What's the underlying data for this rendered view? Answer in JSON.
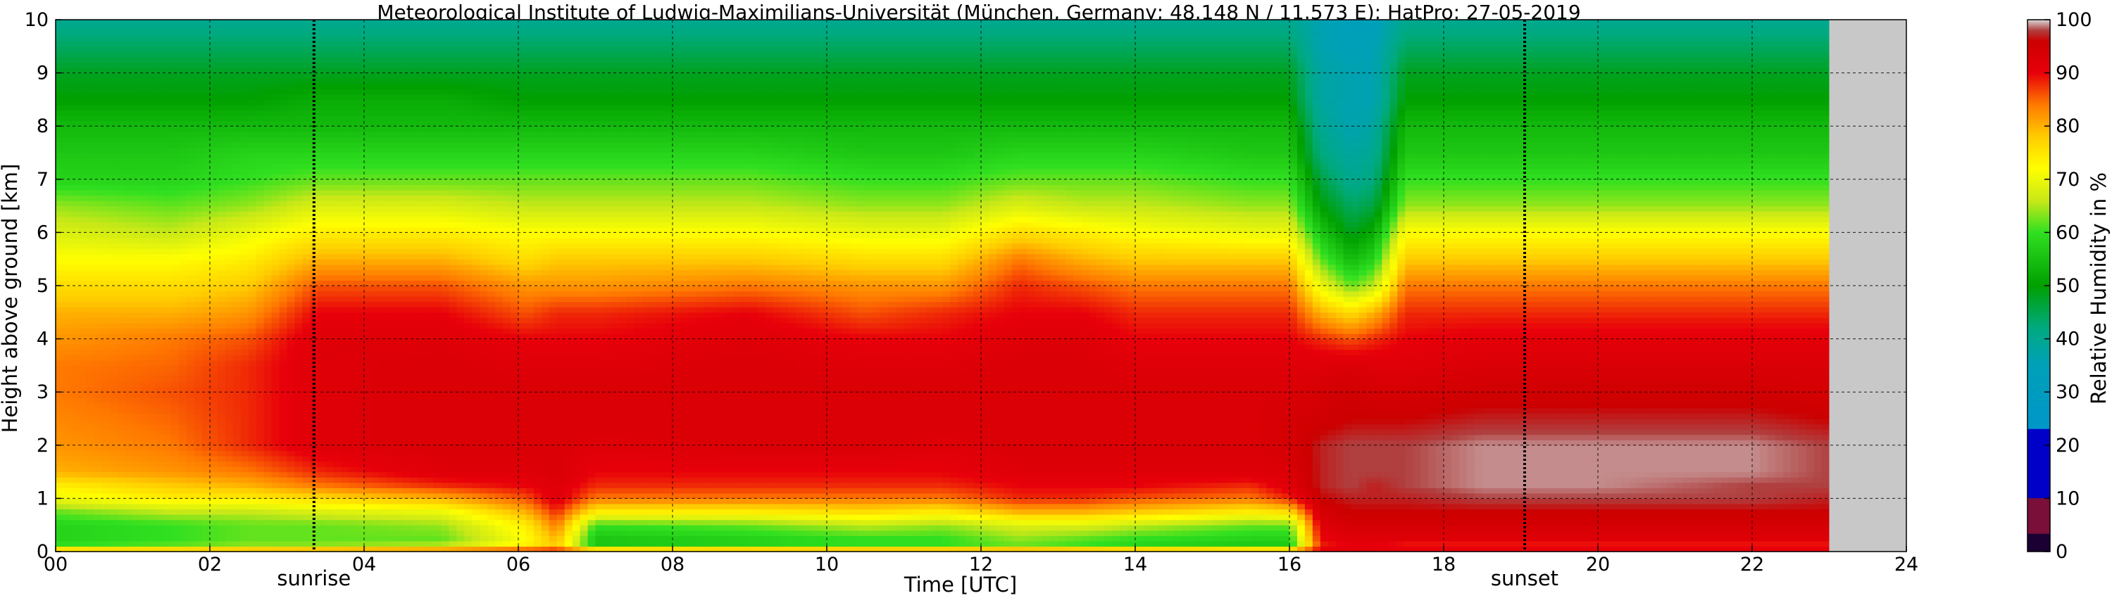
{
  "chart_data": {
    "type": "heatmap",
    "title": "Meteorological Institute of Ludwig-Maximilians-Universität (München, Germany; 48.148 N / 11.573 E):    HatPro: 27-05-2019",
    "xlabel": "Time [UTC]",
    "ylabel": "Height above ground [km]",
    "xlim": [
      0,
      24
    ],
    "ylim": [
      0,
      10
    ],
    "x_ticks": [
      "00",
      "02",
      "04",
      "06",
      "08",
      "10",
      "12",
      "14",
      "16",
      "18",
      "20",
      "22",
      "24"
    ],
    "y_ticks": [
      "0",
      "1",
      "2",
      "3",
      "4",
      "5",
      "6",
      "7",
      "8",
      "9",
      "10"
    ],
    "grid": true,
    "data_end_hour": 23.0,
    "no_data_color": "#c8c8c8",
    "annotations": [
      {
        "label": "sunrise",
        "x": 3.35
      },
      {
        "label": "sunset",
        "x": 19.05
      }
    ],
    "colorbar": {
      "label": "Relative Humidity in %",
      "ticks": [
        "0",
        "10",
        "20",
        "30",
        "40",
        "50",
        "60",
        "70",
        "80",
        "90",
        "100"
      ],
      "stops": [
        {
          "value": 0,
          "color": "#1a0033"
        },
        {
          "value": 3.3,
          "color": "#1a0033"
        },
        {
          "value": 3.4,
          "color": "#7a0f3a"
        },
        {
          "value": 10,
          "color": "#7a0f3a"
        },
        {
          "value": 10.1,
          "color": "#0000c8"
        },
        {
          "value": 23,
          "color": "#0000c8"
        },
        {
          "value": 23.1,
          "color": "#0096c8"
        },
        {
          "value": 35,
          "color": "#00a0b8"
        },
        {
          "value": 42,
          "color": "#00aa80"
        },
        {
          "value": 50,
          "color": "#00a000"
        },
        {
          "value": 60,
          "color": "#30e020"
        },
        {
          "value": 66,
          "color": "#c8e818"
        },
        {
          "value": 72,
          "color": "#ffff00"
        },
        {
          "value": 78,
          "color": "#ffcc00"
        },
        {
          "value": 84,
          "color": "#ff7a00"
        },
        {
          "value": 90,
          "color": "#e8000a"
        },
        {
          "value": 96,
          "color": "#cc0000"
        },
        {
          "value": 98,
          "color": "#b04040"
        },
        {
          "value": 100,
          "color": "#d8d8d8"
        }
      ]
    },
    "rh_profiles": {
      "heights_km": [
        0,
        0.1,
        0.25,
        0.5,
        0.75,
        1.0,
        1.25,
        1.5,
        2.0,
        2.5,
        3.0,
        3.5,
        4.0,
        4.5,
        5.0,
        5.5,
        6.0,
        6.5,
        7.0,
        7.5,
        8.0,
        8.5,
        9.0,
        9.5,
        10.0
      ],
      "times_hours": [
        0,
        1.5,
        2.5,
        3.4,
        5.0,
        6.1,
        6.5,
        7.0,
        9.0,
        10.5,
        11.5,
        12.5,
        13.3,
        14.0,
        15.5,
        16.0,
        16.4,
        16.8,
        17.1,
        17.5,
        18.5,
        20.0,
        22.0,
        23.0
      ],
      "values": [
        [
          90,
          60,
          58,
          58,
          62,
          70,
          74,
          80,
          82,
          83,
          84,
          84,
          82,
          80,
          76,
          72,
          68,
          64,
          58,
          56,
          54,
          50,
          48,
          44,
          40
        ],
        [
          90,
          62,
          60,
          60,
          66,
          74,
          78,
          82,
          84,
          85,
          86,
          85,
          84,
          80,
          76,
          72,
          66,
          62,
          58,
          56,
          54,
          50,
          48,
          44,
          40
        ],
        [
          90,
          64,
          62,
          62,
          66,
          74,
          80,
          84,
          88,
          88,
          88,
          88,
          86,
          82,
          78,
          74,
          70,
          64,
          60,
          58,
          54,
          50,
          48,
          44,
          40
        ],
        [
          92,
          64,
          62,
          62,
          68,
          76,
          84,
          88,
          92,
          92,
          92,
          92,
          92,
          90,
          86,
          80,
          74,
          68,
          62,
          58,
          54,
          52,
          48,
          44,
          40
        ],
        [
          94,
          66,
          62,
          64,
          70,
          80,
          88,
          92,
          93,
          93,
          93,
          93,
          92,
          90,
          86,
          80,
          74,
          68,
          62,
          58,
          54,
          52,
          48,
          44,
          40
        ],
        [
          94,
          74,
          72,
          74,
          80,
          86,
          90,
          92,
          93,
          93,
          93,
          92,
          90,
          86,
          82,
          76,
          72,
          66,
          62,
          58,
          54,
          50,
          48,
          44,
          40
        ],
        [
          94,
          78,
          80,
          84,
          88,
          92,
          92,
          93,
          93,
          93,
          93,
          92,
          90,
          88,
          82,
          78,
          72,
          66,
          62,
          58,
          54,
          50,
          48,
          44,
          40
        ],
        [
          94,
          56,
          56,
          60,
          74,
          84,
          88,
          90,
          92,
          93,
          93,
          92,
          90,
          88,
          82,
          78,
          72,
          66,
          62,
          58,
          54,
          50,
          48,
          44,
          40
        ],
        [
          94,
          58,
          58,
          62,
          74,
          84,
          88,
          90,
          93,
          93,
          93,
          93,
          92,
          90,
          84,
          78,
          72,
          66,
          62,
          58,
          54,
          50,
          48,
          44,
          40
        ],
        [
          94,
          60,
          60,
          66,
          76,
          84,
          88,
          90,
          93,
          93,
          93,
          92,
          90,
          86,
          82,
          76,
          70,
          64,
          60,
          56,
          54,
          50,
          48,
          44,
          40
        ],
        [
          94,
          60,
          60,
          64,
          74,
          84,
          88,
          90,
          92,
          93,
          93,
          92,
          90,
          88,
          82,
          76,
          70,
          64,
          60,
          56,
          54,
          50,
          48,
          44,
          40
        ],
        [
          94,
          62,
          64,
          68,
          80,
          88,
          90,
          92,
          93,
          93,
          93,
          93,
          92,
          90,
          88,
          84,
          76,
          68,
          62,
          58,
          54,
          50,
          48,
          44,
          40
        ],
        [
          94,
          60,
          62,
          68,
          80,
          88,
          90,
          92,
          93,
          93,
          93,
          93,
          92,
          90,
          86,
          80,
          74,
          66,
          62,
          58,
          54,
          50,
          48,
          44,
          40
        ],
        [
          94,
          58,
          60,
          66,
          78,
          86,
          90,
          92,
          93,
          93,
          93,
          92,
          90,
          88,
          84,
          78,
          72,
          66,
          62,
          58,
          54,
          50,
          48,
          44,
          40
        ],
        [
          94,
          56,
          58,
          62,
          74,
          84,
          88,
          92,
          93,
          93,
          93,
          92,
          90,
          88,
          84,
          78,
          70,
          64,
          60,
          56,
          54,
          50,
          48,
          44,
          40
        ],
        [
          94,
          56,
          58,
          62,
          76,
          88,
          92,
          93,
          94,
          94,
          93,
          92,
          90,
          88,
          84,
          78,
          70,
          64,
          60,
          56,
          54,
          50,
          48,
          44,
          40
        ],
        [
          92,
          88,
          90,
          92,
          94,
          96,
          97,
          97,
          97,
          95,
          94,
          92,
          88,
          80,
          70,
          62,
          56,
          50,
          46,
          42,
          40,
          38,
          38,
          36,
          36
        ],
        [
          92,
          90,
          92,
          94,
          96,
          97,
          98,
          98,
          98,
          96,
          95,
          93,
          86,
          76,
          62,
          54,
          48,
          44,
          40,
          38,
          36,
          36,
          36,
          35,
          34
        ],
        [
          92,
          90,
          92,
          94,
          96,
          97,
          97,
          98,
          98,
          96,
          94,
          92,
          88,
          80,
          66,
          58,
          52,
          46,
          42,
          40,
          38,
          36,
          36,
          35,
          34
        ],
        [
          92,
          88,
          92,
          94,
          96,
          97,
          98,
          98,
          98,
          96,
          94,
          92,
          90,
          88,
          84,
          78,
          72,
          64,
          60,
          56,
          54,
          50,
          48,
          44,
          40
        ],
        [
          92,
          88,
          92,
          94,
          96,
          98,
          99,
          99,
          99,
          97,
          95,
          93,
          91,
          88,
          84,
          78,
          72,
          64,
          60,
          56,
          54,
          50,
          48,
          44,
          40
        ],
        [
          92,
          88,
          92,
          94,
          96,
          98,
          99,
          99,
          99,
          97,
          95,
          93,
          91,
          88,
          84,
          78,
          72,
          64,
          60,
          56,
          54,
          50,
          48,
          44,
          40
        ],
        [
          92,
          88,
          92,
          94,
          96,
          98,
          98,
          99,
          99,
          97,
          95,
          93,
          91,
          88,
          84,
          78,
          72,
          64,
          60,
          56,
          54,
          50,
          48,
          44,
          40
        ],
        [
          92,
          88,
          92,
          94,
          96,
          97,
          98,
          98,
          98,
          96,
          94,
          93,
          91,
          88,
          84,
          78,
          72,
          64,
          60,
          56,
          54,
          50,
          48,
          44,
          40
        ]
      ]
    }
  }
}
